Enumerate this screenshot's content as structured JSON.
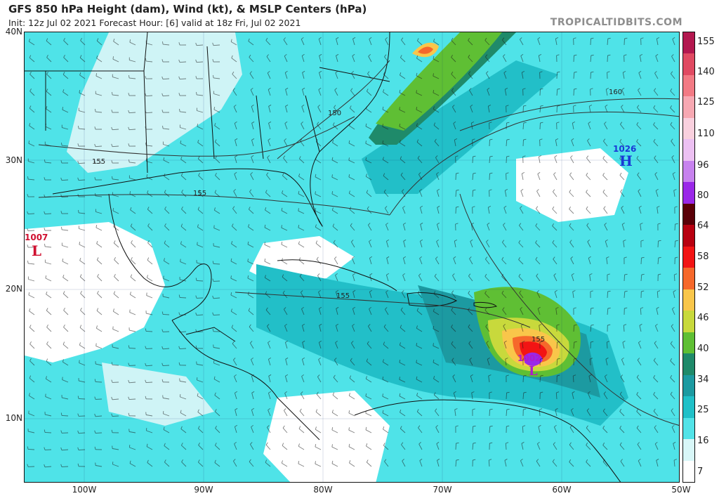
{
  "header": {
    "title": "GFS 850 hPa Height (dam), Wind (kt), & MSLP Centers (hPa)",
    "subtitle": "Init: 12z Jul 02 2021   Forecast Hour: [6]   valid at 18z Fri, Jul 02 2021",
    "brand": "TROPICALTIDBITS.COM"
  },
  "map": {
    "lat_labels": [
      "40N",
      "30N",
      "20N",
      "10N"
    ],
    "lon_labels": [
      "100W",
      "90W",
      "80W",
      "70W",
      "60W",
      "50W"
    ],
    "contour_labels": [
      "150",
      "155",
      "155",
      "155",
      "160",
      "155"
    ],
    "pressure_centers": [
      {
        "type": "H",
        "value": "1026",
        "color": "#1a3ad6"
      },
      {
        "type": "L",
        "value": "1007",
        "color": "#d01030"
      },
      {
        "type": "L",
        "value": "1002",
        "color": "#b01acc"
      }
    ]
  },
  "colorbar": {
    "labels": [
      "155",
      "140",
      "125",
      "110",
      "96",
      "80",
      "64",
      "58",
      "52",
      "46",
      "40",
      "34",
      "25",
      "16",
      "7"
    ],
    "colors": [
      "#b3184f",
      "#e04a62",
      "#f27a84",
      "#f7a8b2",
      "#f9d0de",
      "#ecc0f2",
      "#c782ee",
      "#9a28e8",
      "#5a0008",
      "#b80010",
      "#f21414",
      "#f6682b",
      "#f9c64a",
      "#c8d93c",
      "#5fbf34",
      "#1f8a6a",
      "#1c9aa1",
      "#20c0c8",
      "#52e3e8",
      "#d8f7f8",
      "#ffffff"
    ]
  }
}
